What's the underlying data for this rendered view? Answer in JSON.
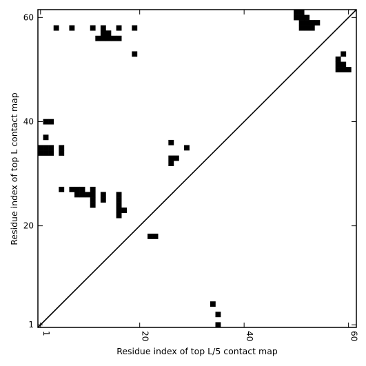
{
  "chart_data": {
    "type": "heatmap",
    "xlabel": "Residue index of top L/5 contact map",
    "ylabel": "Residue index of top L contact map",
    "xlim": [
      0.5,
      61.5
    ],
    "ylim": [
      0.5,
      61.5
    ],
    "x_ticks": [
      1,
      20,
      40,
      60
    ],
    "y_ticks": [
      1,
      20,
      40,
      60
    ],
    "x_tick_labels": [
      "1",
      "20",
      "40",
      "60"
    ],
    "y_tick_labels": [
      "1",
      "20",
      "40",
      "60"
    ],
    "diagonal": true,
    "cell_color": "#000000",
    "background_color": "#ffffff",
    "upper_contacts": [
      [
        4,
        58
      ],
      [
        7,
        58
      ],
      [
        11,
        58
      ],
      [
        13,
        58
      ],
      [
        16,
        58
      ],
      [
        19,
        58
      ],
      [
        12,
        56
      ],
      [
        13,
        56
      ],
      [
        14,
        56
      ],
      [
        15,
        56
      ],
      [
        16,
        56
      ],
      [
        13,
        57
      ],
      [
        14,
        57
      ],
      [
        19,
        53
      ],
      [
        50,
        61
      ],
      [
        51,
        61
      ],
      [
        50,
        60
      ],
      [
        51,
        60
      ],
      [
        52,
        60
      ],
      [
        51,
        59
      ],
      [
        52,
        59
      ],
      [
        53,
        59
      ],
      [
        54,
        59
      ],
      [
        51,
        58
      ],
      [
        52,
        58
      ],
      [
        53,
        58
      ],
      [
        59,
        53
      ],
      [
        58,
        52
      ],
      [
        58,
        51
      ],
      [
        59,
        51
      ],
      [
        58,
        50
      ],
      [
        59,
        50
      ],
      [
        60,
        50
      ],
      [
        2,
        40
      ],
      [
        3,
        40
      ],
      [
        2,
        37
      ],
      [
        1,
        35
      ],
      [
        2,
        35
      ],
      [
        3,
        35
      ],
      [
        5,
        35
      ],
      [
        1,
        34
      ],
      [
        2,
        34
      ],
      [
        3,
        34
      ],
      [
        5,
        34
      ],
      [
        26,
        36
      ],
      [
        29,
        35
      ],
      [
        26,
        33
      ],
      [
        27,
        33
      ],
      [
        26,
        32
      ],
      [
        5,
        27
      ],
      [
        7,
        27
      ],
      [
        8,
        27
      ],
      [
        9,
        27
      ],
      [
        11,
        27
      ],
      [
        8,
        26
      ],
      [
        9,
        26
      ],
      [
        10,
        26
      ],
      [
        11,
        26
      ],
      [
        13,
        26
      ],
      [
        16,
        26
      ],
      [
        11,
        25
      ],
      [
        13,
        25
      ],
      [
        16,
        25
      ],
      [
        11,
        24
      ],
      [
        16,
        24
      ],
      [
        16,
        23
      ],
      [
        17,
        23
      ],
      [
        16,
        22
      ],
      [
        22,
        18
      ],
      [
        23,
        18
      ]
    ],
    "lower_contacts": [
      [
        34,
        5
      ],
      [
        35,
        3
      ],
      [
        35,
        1
      ]
    ]
  }
}
